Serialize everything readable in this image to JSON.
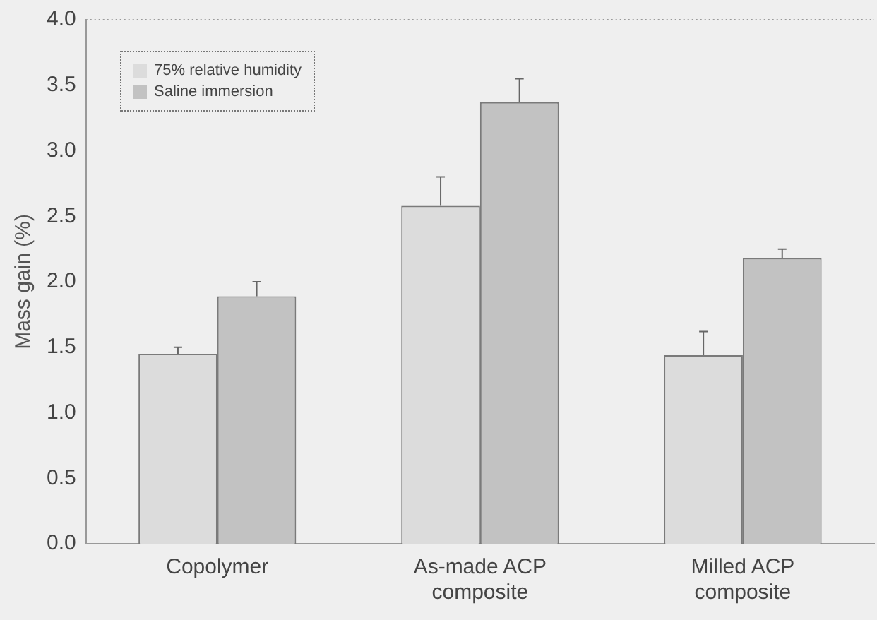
{
  "chart_data": {
    "type": "bar",
    "ylabel": "Mass gain (%)",
    "categories": [
      "Copolymer",
      "As-made ACP composite",
      "Milled ACP composite"
    ],
    "series": [
      {
        "name": "75% relative humidity",
        "color": "#dcdcdc",
        "values": [
          1.45,
          2.58,
          1.44
        ],
        "errors": [
          [
            1.45,
            1.5
          ],
          [
            2.58,
            2.8
          ],
          [
            1.44,
            1.62
          ]
        ]
      },
      {
        "name": "Saline immersion",
        "color": "#c2c2c2",
        "values": [
          1.89,
          3.37,
          2.18
        ],
        "errors": [
          [
            1.89,
            2.0
          ],
          [
            3.37,
            3.55
          ],
          [
            2.18,
            2.25
          ]
        ]
      }
    ],
    "ylim": [
      0,
      4
    ],
    "yticks": [
      {
        "value": 0,
        "label": "0.0"
      },
      0.5,
      {
        "value": 1,
        "label": "1.0"
      },
      1.5,
      {
        "value": 2,
        "label": "2.0"
      },
      2.5,
      {
        "value": 3,
        "label": "3.0"
      },
      3.5,
      {
        "value": 4,
        "label": "4.0"
      }
    ],
    "legend": "top left",
    "grid": false
  }
}
